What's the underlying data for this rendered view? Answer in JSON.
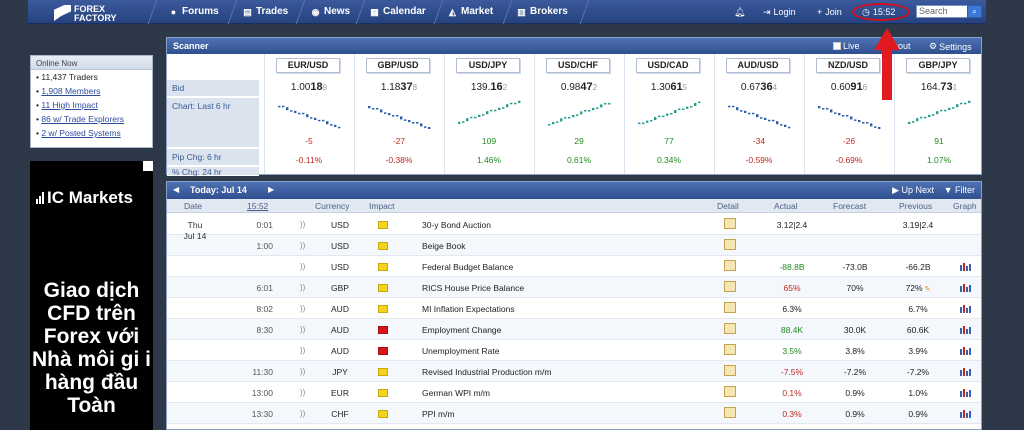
{
  "nav": {
    "logo_line1": "FOREX",
    "logo_line2": "FACTORY",
    "items": [
      {
        "label": "Forums",
        "icon": "chat-icon"
      },
      {
        "label": "Trades",
        "icon": "trades-icon"
      },
      {
        "label": "News",
        "icon": "globe-icon"
      },
      {
        "label": "Calendar",
        "icon": "calendar-icon"
      },
      {
        "label": "Market",
        "icon": "market-icon"
      },
      {
        "label": "Brokers",
        "icon": "brokers-icon"
      }
    ],
    "login_label": "Login",
    "join_label": "Join",
    "time": "15:52",
    "search_placeholder": "Search"
  },
  "online": {
    "header": "Online Now",
    "items": [
      {
        "text": "11,437 Traders",
        "link": false
      },
      {
        "text": "1,908 Members",
        "link": true
      },
      {
        "text": "11 High Impact",
        "link": true
      },
      {
        "text": "86 w/ Trade Explorers",
        "link": true
      },
      {
        "text": "2 w/ Posted Systems",
        "link": true
      }
    ]
  },
  "ad": {
    "brand": "IC Markets",
    "text": "Giao dịch CFD trên Forex với Nhà môi gi i hàng đầu Toàn"
  },
  "scanner": {
    "title": "Scanner",
    "live_label": "Live",
    "about_label": "About",
    "settings_label": "Settings",
    "labels": {
      "bid": "Bid",
      "chart": "Chart: Last 6 hr",
      "pip": "Pip Chg: 6 hr",
      "pct": "% Chg: 24 hr"
    },
    "pairs": [
      {
        "name": "EUR/USD",
        "bid": "1.00189",
        "pip": "-5",
        "pct": "-0.11%",
        "dir": "neg"
      },
      {
        "name": "GBP/USD",
        "bid": "1.18378",
        "pip": "-27",
        "pct": "-0.38%",
        "dir": "neg"
      },
      {
        "name": "USD/JPY",
        "bid": "139.162",
        "pip": "109",
        "pct": "1.46%",
        "dir": "pos"
      },
      {
        "name": "USD/CHF",
        "bid": "0.98472",
        "pip": "29",
        "pct": "0.61%",
        "dir": "pos"
      },
      {
        "name": "USD/CAD",
        "bid": "1.30615",
        "pip": "77",
        "pct": "0.34%",
        "dir": "pos"
      },
      {
        "name": "AUD/USD",
        "bid": "0.67364",
        "pip": "-34",
        "pct": "-0.59%",
        "dir": "neg"
      },
      {
        "name": "NZD/USD",
        "bid": "0.60916",
        "pip": "-26",
        "pct": "-0.69%",
        "dir": "neg"
      },
      {
        "name": "GBP/JPY",
        "bid": "164.731",
        "pip": "91",
        "pct": "1.07%",
        "dir": "pos"
      }
    ]
  },
  "calendar": {
    "today_label": "Today: Jul 14",
    "up_next_label": "Up Next",
    "filter_label": "Filter",
    "columns": {
      "date": "Date",
      "time": "15:52",
      "currency": "Currency",
      "impact": "Impact",
      "detail": "Detail",
      "actual": "Actual",
      "forecast": "Forecast",
      "previous": "Previous",
      "graph": "Graph"
    },
    "day": "Thu",
    "date": "Jul 14",
    "rows": [
      {
        "time": "0:01",
        "cur": "USD",
        "impact": "yellow",
        "event": "30-y Bond Auction",
        "actual": "3.12|2.4",
        "actual_dir": "",
        "forecast": "",
        "previous": "3.19|2.4",
        "graph": false
      },
      {
        "time": "1:00",
        "cur": "USD",
        "impact": "yellow",
        "event": "Beige Book",
        "actual": "",
        "actual_dir": "",
        "forecast": "",
        "previous": "",
        "graph": false
      },
      {
        "time": "",
        "cur": "USD",
        "impact": "yellow",
        "event": "Federal Budget Balance",
        "actual": "-88.8B",
        "actual_dir": "pos",
        "forecast": "-73.0B",
        "previous": "-66.2B",
        "graph": true
      },
      {
        "time": "6:01",
        "cur": "GBP",
        "impact": "yellow",
        "event": "RICS House Price Balance",
        "actual": "65%",
        "actual_dir": "neg",
        "forecast": "70%",
        "previous": "72%",
        "graph": true,
        "revised": true
      },
      {
        "time": "8:02",
        "cur": "AUD",
        "impact": "yellow",
        "event": "MI Inflation Expectations",
        "actual": "6.3%",
        "actual_dir": "",
        "forecast": "",
        "previous": "6.7%",
        "graph": true
      },
      {
        "time": "8:30",
        "cur": "AUD",
        "impact": "red",
        "event": "Employment Change",
        "actual": "88.4K",
        "actual_dir": "pos",
        "forecast": "30.0K",
        "previous": "60.6K",
        "graph": true
      },
      {
        "time": "",
        "cur": "AUD",
        "impact": "red",
        "event": "Unemployment Rate",
        "actual": "3.5%",
        "actual_dir": "pos",
        "forecast": "3.8%",
        "previous": "3.9%",
        "graph": true
      },
      {
        "time": "11:30",
        "cur": "JPY",
        "impact": "yellow",
        "event": "Revised Industrial Production m/m",
        "actual": "-7.5%",
        "actual_dir": "neg",
        "forecast": "-7.2%",
        "previous": "-7.2%",
        "graph": true
      },
      {
        "time": "13:00",
        "cur": "EUR",
        "impact": "yellow",
        "event": "German WPI m/m",
        "actual": "0.1%",
        "actual_dir": "neg",
        "forecast": "0.9%",
        "previous": "1.0%",
        "graph": true
      },
      {
        "time": "13:30",
        "cur": "CHF",
        "impact": "yellow",
        "event": "PPI m/m",
        "actual": "0.3%",
        "actual_dir": "neg",
        "forecast": "0.9%",
        "previous": "0.9%",
        "graph": true
      }
    ]
  },
  "colors": {
    "nav": "#2f4f8f",
    "negative": "#c0271f",
    "positive": "#1f8b1f",
    "highlight": "#d01020"
  }
}
